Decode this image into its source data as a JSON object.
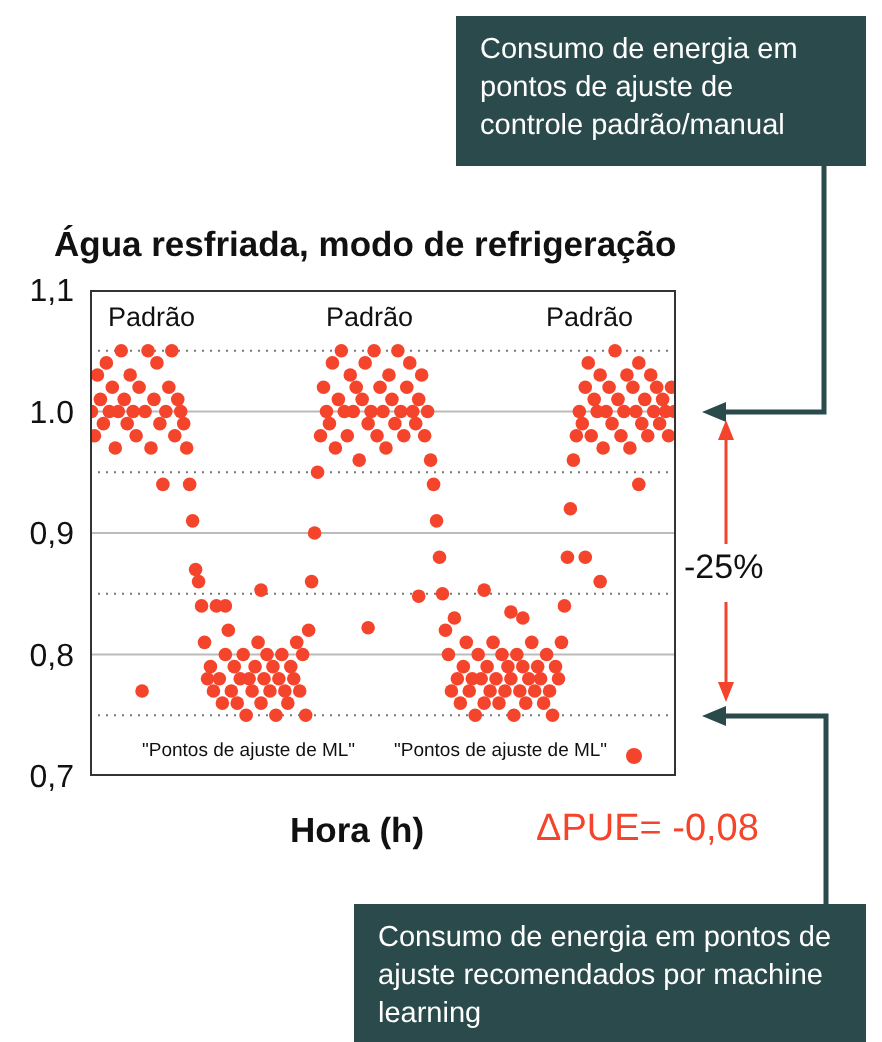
{
  "chart_data": {
    "type": "scatter",
    "title": "Água resfriada, modo de refrigeração",
    "xlabel": "Hora (h)",
    "annotations": [
      "Consumo de energia em pontos de ajuste de controle padrão/manual",
      "Consumo de energia em pontos de ajuste recomendados por machine learning",
      "-25%",
      "ΔPUE= -0,08",
      "Padrão",
      "Padrão",
      "Padrão",
      "\"Pontos de ajuste de ML\"",
      "\"Pontos de ajuste de ML\""
    ],
    "ylim": [
      0.7,
      1.1
    ],
    "yticks": [
      {
        "value": 0.7,
        "label": "0,7"
      },
      {
        "value": 0.75,
        "label": null
      },
      {
        "value": 0.8,
        "label": "0,8"
      },
      {
        "value": 0.85,
        "label": null
      },
      {
        "value": 0.9,
        "label": "0,9"
      },
      {
        "value": 0.95,
        "label": null
      },
      {
        "value": 1.0,
        "label": "1.0"
      },
      {
        "value": 1.05,
        "label": null
      },
      {
        "value": 1.1,
        "label": "1,1"
      }
    ],
    "tick_labels": "y",
    "grid": "y",
    "marker": "circle",
    "categories": [
      null,
      null,
      null,
      null,
      null,
      null,
      null,
      null,
      null,
      null,
      null,
      null,
      null,
      null,
      null,
      null,
      null,
      null,
      null,
      null,
      null,
      null,
      null,
      null,
      null,
      null,
      null,
      null,
      null,
      null,
      null,
      null,
      null,
      null,
      null,
      null,
      null,
      null,
      null,
      null,
      null,
      null,
      null,
      null,
      null,
      null,
      null,
      null,
      null,
      null,
      null,
      null,
      null,
      null,
      null,
      null,
      null,
      null,
      null,
      null,
      null,
      null,
      null,
      null,
      null,
      null,
      null,
      null,
      null,
      null,
      null,
      null,
      null,
      null,
      null,
      null,
      null,
      null,
      null,
      null,
      null,
      null,
      null,
      null,
      null,
      null,
      null,
      null,
      null,
      null,
      null,
      null,
      null,
      null,
      null,
      null,
      null,
      null,
      null,
      null,
      null,
      null,
      null,
      null,
      null,
      null,
      null,
      null,
      null,
      null,
      null,
      null,
      null,
      null,
      null,
      null,
      null,
      null,
      null,
      null,
      null,
      null,
      null,
      null,
      null,
      null,
      null,
      null,
      null,
      null,
      null,
      null,
      null,
      null,
      null,
      null,
      null,
      null,
      null,
      null,
      null,
      null,
      null,
      null,
      null,
      null,
      null,
      null,
      null,
      null,
      null,
      null,
      null,
      null,
      null,
      null,
      null,
      null,
      null,
      null,
      null,
      null,
      null,
      null,
      null,
      null,
      null,
      null,
      null,
      null,
      null,
      null,
      null,
      null,
      null,
      null,
      null,
      null,
      null,
      null,
      null,
      null,
      null,
      null,
      null,
      null,
      null,
      null,
      null,
      null,
      null,
      null,
      null,
      null,
      null,
      null,
      null
    ],
    "series": [
      {
        "color": "#f4452c",
        "values": [
          1.0,
          0.98,
          1.03,
          1.01,
          0.99,
          1.04,
          1.0,
          1.02,
          0.97,
          1.0,
          1.05,
          1.01,
          0.99,
          1.03,
          1.0,
          0.98,
          1.02,
          0.77,
          1.0,
          1.05,
          0.97,
          1.01,
          1.04,
          0.99,
          0.94,
          1.0,
          1.02,
          1.05,
          0.98,
          1.01,
          1.0,
          0.99,
          0.97,
          0.94,
          0.91,
          0.87,
          0.86,
          0.84,
          0.81,
          0.78,
          0.79,
          0.77,
          0.84,
          0.78,
          0.76,
          0.8,
          0.82,
          0.77,
          0.79,
          0.76,
          0.78,
          0.8,
          0.75,
          0.78,
          0.77,
          0.79,
          0.81,
          0.76,
          0.78,
          0.8,
          0.77,
          0.79,
          0.75,
          0.78,
          0.8,
          0.77,
          0.76,
          0.79,
          0.78,
          0.81,
          0.77,
          0.8,
          0.75,
          0.82,
          0.86,
          0.9,
          0.95,
          0.98,
          1.02,
          1.0,
          0.99,
          1.04,
          0.97,
          1.01,
          1.05,
          1.0,
          0.98,
          1.03,
          1.0,
          1.02,
          0.96,
          1.01,
          1.04,
          0.99,
          1.0,
          1.05,
          0.98,
          1.02,
          1.0,
          0.97,
          1.03,
          1.01,
          0.99,
          1.05,
          1.0,
          0.98,
          1.02,
          1.04,
          1.0,
          0.99,
          1.01,
          1.03,
          0.98,
          1.0,
          0.96,
          0.94,
          0.91,
          0.88,
          0.85,
          0.82,
          0.8,
          0.77,
          0.83,
          0.78,
          0.76,
          0.79,
          0.81,
          0.77,
          0.78,
          0.75,
          0.8,
          0.78,
          0.76,
          0.79,
          0.77,
          0.81,
          0.78,
          0.76,
          0.8,
          0.77,
          0.79,
          0.78,
          0.75,
          0.8,
          0.77,
          0.79,
          0.76,
          0.78,
          0.81,
          0.77,
          0.79,
          0.78,
          0.76,
          0.8,
          0.77,
          0.75,
          0.79,
          0.78,
          0.81,
          0.84,
          0.88,
          0.92,
          0.96,
          0.98,
          1.0,
          0.99,
          1.02,
          1.04,
          0.98,
          1.01,
          1.0,
          1.03,
          0.97,
          1.0,
          1.02,
          0.99,
          1.05,
          1.01,
          0.98,
          1.0,
          1.03,
          0.97,
          1.02,
          1.0,
          1.04,
          0.99,
          1.01,
          0.98,
          1.03,
          1.0,
          1.02,
          0.99,
          1.01,
          1.0,
          0.98,
          1.02,
          1.0
        ]
      },
      {
        "color": "#f4452c",
        "values": [
          null,
          null,
          null,
          null,
          null,
          null,
          null,
          null,
          null,
          null,
          null,
          null,
          null,
          null,
          null,
          null,
          null,
          null,
          null,
          null,
          null,
          null,
          null,
          null,
          null,
          null,
          null,
          null,
          null,
          null,
          null,
          null,
          null,
          null,
          null,
          null,
          null,
          null,
          null,
          null,
          null,
          null,
          null,
          null,
          null,
          0.84,
          null,
          null,
          null,
          null,
          null,
          null,
          null,
          null,
          null,
          null,
          null,
          0.853,
          null,
          null,
          null,
          null,
          null,
          null,
          null,
          null,
          null,
          null,
          null,
          null,
          null,
          null,
          null,
          null,
          null,
          null,
          null,
          null,
          null,
          null,
          null,
          null,
          null,
          null,
          null,
          null,
          null,
          null,
          null,
          null,
          null,
          null,
          null,
          0.822,
          null,
          null,
          null,
          null,
          null,
          null,
          null,
          null,
          null,
          null,
          null,
          null,
          null,
          null,
          null,
          null,
          0.848,
          null,
          null,
          null,
          null,
          null,
          null,
          null,
          null,
          null,
          null,
          null,
          null,
          null,
          null,
          null,
          null,
          null,
          null,
          null,
          null,
          null,
          0.853,
          null,
          null,
          null,
          null,
          null,
          null,
          null,
          null,
          0.835,
          null,
          null,
          null,
          0.83,
          null,
          null,
          null,
          null,
          null,
          null,
          null,
          null,
          null,
          null,
          null,
          null,
          null,
          null,
          null,
          null,
          null,
          null,
          null,
          null,
          0.88,
          null,
          null,
          null,
          null,
          0.86,
          null,
          null,
          null,
          null,
          null,
          null,
          null,
          null,
          null,
          null,
          null,
          null,
          0.94,
          null,
          null,
          null,
          null,
          null,
          null,
          null,
          null,
          null,
          null,
          null,
          null
        ]
      }
    ]
  }
}
